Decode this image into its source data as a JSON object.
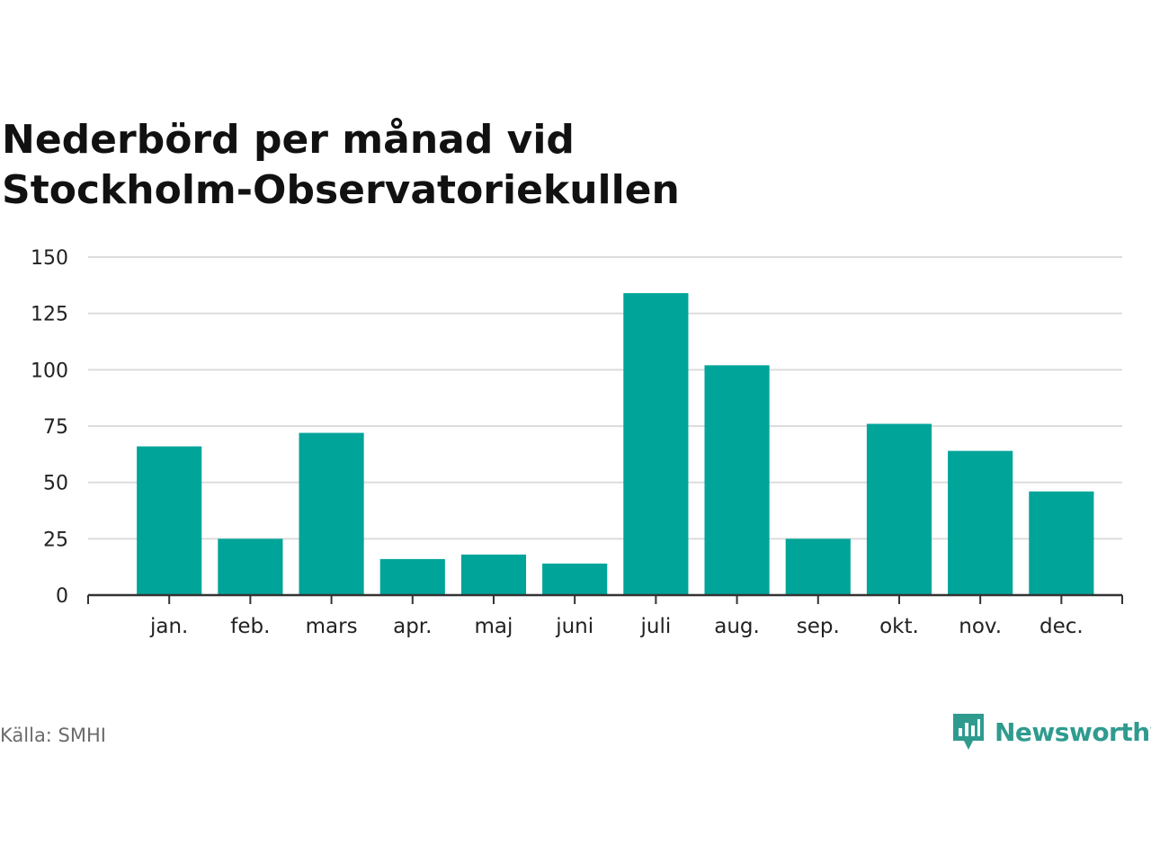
{
  "header": {
    "title_line1": "Nederbörd per månad vid",
    "title_line2": "Stockholm-Observatoriekullen"
  },
  "footer": {
    "source": "Källa: SMHI",
    "brand": "Newsworthy"
  },
  "colors": {
    "bar": "#00a499",
    "grid": "#dcdcdc",
    "axis": "#333333",
    "brand": "#2f9b8f"
  },
  "chart_data": {
    "type": "bar",
    "title": "Nederbörd per månad vid Stockholm-Observatoriekullen",
    "categories": [
      "jan.",
      "feb.",
      "mars",
      "apr.",
      "maj",
      "juni",
      "juli",
      "aug.",
      "sep.",
      "okt.",
      "nov.",
      "dec."
    ],
    "values": [
      66,
      25,
      72,
      16,
      18,
      14,
      134,
      102,
      25,
      76,
      64,
      46
    ],
    "ylim": [
      0,
      150
    ],
    "yticks": [
      0,
      25,
      50,
      75,
      100,
      125,
      150
    ],
    "grid": true,
    "legend": "none",
    "xlabel": "",
    "ylabel": ""
  }
}
